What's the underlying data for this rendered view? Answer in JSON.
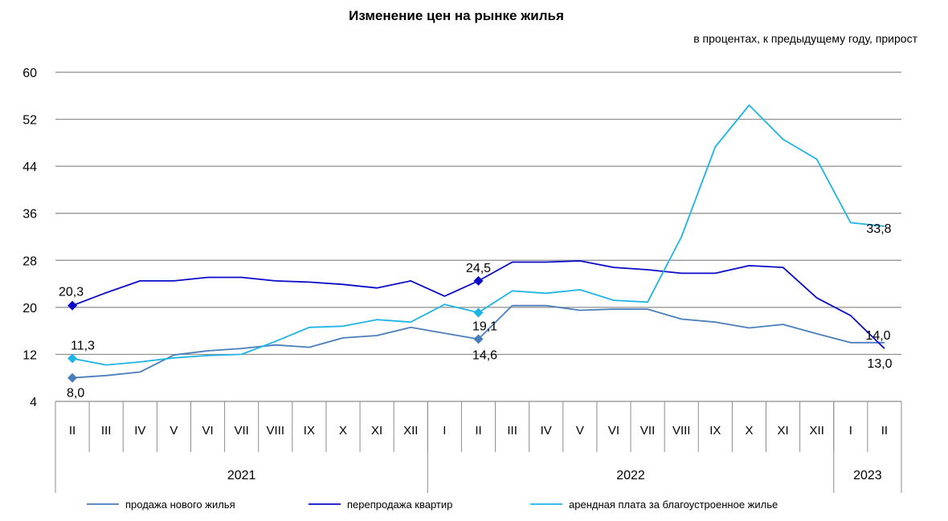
{
  "title": "Изменение цен на рынке жилья",
  "subtitle": "в процентах,  к предыдущему году, прирост",
  "chart_data": {
    "type": "line",
    "title": "Изменение цен на рынке жилья",
    "subtitle": "в процентах,  к предыдущему году, прирост",
    "ylim": [
      4,
      60
    ],
    "yticks": [
      4,
      12,
      20,
      28,
      36,
      44,
      52,
      60
    ],
    "grid": true,
    "legend_position": "bottom",
    "categories": [
      "II",
      "III",
      "IV",
      "V",
      "VI",
      "VII",
      "VIII",
      "IX",
      "X",
      "XI",
      "XII",
      "I",
      "II",
      "III",
      "IV",
      "V",
      "VI",
      "VII",
      "VIII",
      "IX",
      "X",
      "XI",
      "XII",
      "I",
      "II"
    ],
    "year_groups": [
      {
        "label": "2021",
        "start": 0,
        "end": 10
      },
      {
        "label": "2022",
        "start": 11,
        "end": 22
      },
      {
        "label": "2023",
        "start": 23,
        "end": 24
      }
    ],
    "series": [
      {
        "name": "продажа нового  жилья",
        "color": "#4A7EBB",
        "values": [
          8.0,
          8.4,
          9.0,
          11.9,
          12.6,
          13.0,
          13.6,
          13.2,
          14.8,
          15.2,
          16.6,
          15.6,
          14.6,
          20.3,
          20.3,
          19.5,
          19.7,
          19.7,
          18.0,
          17.5,
          16.5,
          17.1,
          15.5,
          14.0,
          14.0
        ],
        "labels": [
          {
            "index": 0,
            "text": "8,0",
            "marker": true
          },
          {
            "index": 12,
            "text": "14,6",
            "marker": true
          },
          {
            "index": 24,
            "text": "14,0",
            "marker": false
          }
        ]
      },
      {
        "name": "перепродажа квартир",
        "color": "#0A0AC8",
        "values": [
          20.3,
          22.5,
          24.5,
          24.5,
          25.1,
          25.1,
          24.5,
          24.3,
          23.9,
          23.3,
          24.5,
          21.9,
          24.5,
          27.7,
          27.7,
          27.9,
          26.8,
          26.4,
          25.8,
          25.8,
          27.1,
          26.8,
          21.6,
          18.6,
          13.0
        ],
        "labels": [
          {
            "index": 0,
            "text": "20,3",
            "marker": true
          },
          {
            "index": 12,
            "text": "24,5",
            "marker": true
          },
          {
            "index": 24,
            "text": "13,0",
            "marker": false
          }
        ]
      },
      {
        "name": "арендная плата за благоустроенное   жилье",
        "color": "#1EB4E6",
        "values": [
          11.3,
          10.2,
          10.7,
          11.4,
          11.8,
          12.0,
          14.2,
          16.6,
          16.8,
          17.9,
          17.5,
          20.5,
          19.1,
          22.8,
          22.4,
          23.0,
          21.2,
          20.9,
          32.0,
          47.3,
          54.4,
          48.6,
          45.2,
          34.4,
          33.8
        ],
        "labels": [
          {
            "index": 0,
            "text": "11,3",
            "marker": true
          },
          {
            "index": 12,
            "text": "19,1",
            "marker": true
          },
          {
            "index": 24,
            "text": "33,8",
            "marker": false
          }
        ]
      }
    ]
  }
}
